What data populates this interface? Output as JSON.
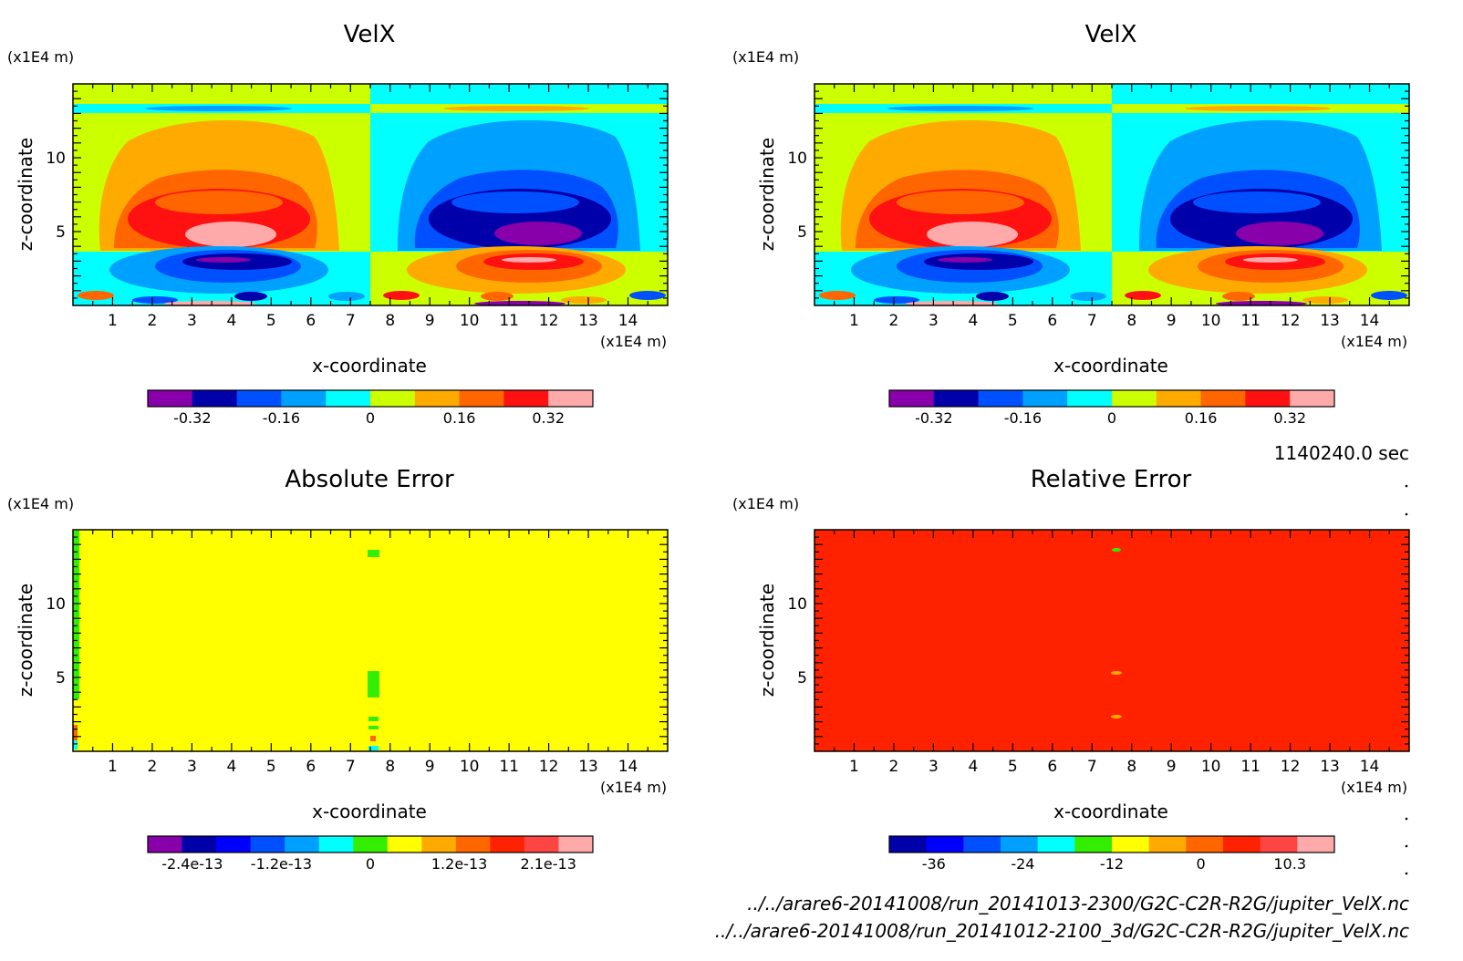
{
  "time_label": "1140240.0 sec",
  "footer": {
    "file1": "../../arare6-20141008/run_20141013-2300/G2C-C2R-R2G/jupiter_VelX.nc",
    "file2": "../../arare6-20141008/run_20141012-2100_3d/G2C-C2R-R2G/jupiter_VelX.nc"
  },
  "chart_data": [
    {
      "type": "heatmap",
      "title": "VelX",
      "xlabel": "x-coordinate",
      "ylabel": "z-coordinate",
      "x_unit": "(x1E4 m)",
      "y_unit": "(x1E4 m)",
      "xlim": [
        0,
        15
      ],
      "ylim": [
        0,
        15
      ],
      "x_ticks": [
        1,
        2,
        3,
        4,
        5,
        6,
        7,
        8,
        9,
        10,
        11,
        12,
        13,
        14
      ],
      "y_ticks": [
        5,
        10
      ],
      "colorbar_colors": [
        "#8800aa",
        "#0000aa",
        "#0050ff",
        "#00a0ff",
        "#00ffff",
        "#ccff00",
        "#ffaa00",
        "#ff6600",
        "#ff1111",
        "#ffaaaa"
      ],
      "colorbar_ticks": [
        "-0.32",
        "-0.16",
        "0",
        "0.16",
        "0.32"
      ],
      "description_of_field": "dipole: positive (warm colors) left half peak ~0.36 near x=3.5,z=5; negative (cool colors) right half; inverted layer below z~3.5"
    },
    {
      "type": "heatmap",
      "title": "VelX",
      "xlabel": "x-coordinate",
      "ylabel": "z-coordinate",
      "x_unit": "(x1E4 m)",
      "y_unit": "(x1E4 m)",
      "xlim": [
        0,
        15
      ],
      "ylim": [
        0,
        15
      ],
      "x_ticks": [
        1,
        2,
        3,
        4,
        5,
        6,
        7,
        8,
        9,
        10,
        11,
        12,
        13,
        14
      ],
      "y_ticks": [
        5,
        10
      ],
      "colorbar_colors": [
        "#8800aa",
        "#0000aa",
        "#0050ff",
        "#00a0ff",
        "#00ffff",
        "#ccff00",
        "#ffaa00",
        "#ff6600",
        "#ff1111",
        "#ffaaaa"
      ],
      "colorbar_ticks": [
        "-0.32",
        "-0.16",
        "0",
        "0.16",
        "0.32"
      ]
    },
    {
      "type": "heatmap",
      "title": "Absolute Error",
      "xlabel": "x-coordinate",
      "ylabel": "z-coordinate",
      "x_unit": "(x1E4 m)",
      "y_unit": "(x1E4 m)",
      "xlim": [
        0,
        15
      ],
      "ylim": [
        0,
        15
      ],
      "x_ticks": [
        1,
        2,
        3,
        4,
        5,
        6,
        7,
        8,
        9,
        10,
        11,
        12,
        13,
        14
      ],
      "y_ticks": [
        5,
        10
      ],
      "background_color": "#ffff00",
      "colorbar_colors": [
        "#8800aa",
        "#0000aa",
        "#0000ff",
        "#0050ff",
        "#00a0ff",
        "#00ffff",
        "#33ee00",
        "#ffff00",
        "#ffaa00",
        "#ff6600",
        "#ff2200",
        "#ff4444",
        "#ffaaaa"
      ],
      "colorbar_ticks": [
        "-2.4e-13",
        "-1.2e-13",
        "0",
        "1.2e-13",
        "2.1e-13"
      ]
    },
    {
      "type": "heatmap",
      "title": "Relative Error",
      "xlabel": "x-coordinate",
      "ylabel": "z-coordinate",
      "x_unit": "(x1E4 m)",
      "y_unit": "(x1E4 m)",
      "xlim": [
        0,
        15
      ],
      "ylim": [
        0,
        15
      ],
      "x_ticks": [
        1,
        2,
        3,
        4,
        5,
        6,
        7,
        8,
        9,
        10,
        11,
        12,
        13,
        14
      ],
      "y_ticks": [
        5,
        10
      ],
      "background_color": "#ff2200",
      "colorbar_colors": [
        "#0000aa",
        "#0000ff",
        "#0050ff",
        "#00a0ff",
        "#00ffff",
        "#33ee00",
        "#ffff00",
        "#ffaa00",
        "#ff6600",
        "#ff2200",
        "#ff4444",
        "#ffaaaa"
      ],
      "colorbar_ticks": [
        "-36",
        "-24",
        "-12",
        "0",
        "10.3"
      ]
    }
  ]
}
